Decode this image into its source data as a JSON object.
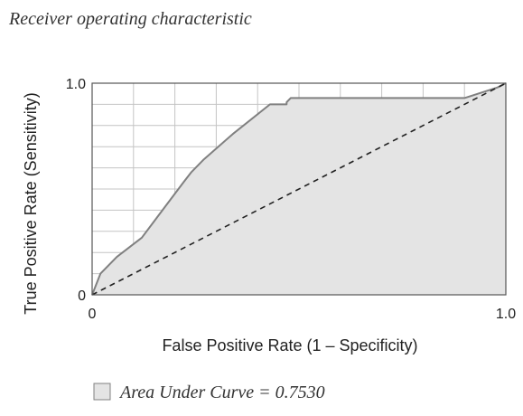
{
  "chart_data": {
    "type": "area",
    "title": "Receiver operating characteristic",
    "xlabel": "False Positive Rate (1 – Specificity)",
    "ylabel": "True Positive Rate (Sensitivity)",
    "xlim": [
      0,
      1.0
    ],
    "ylim": [
      0,
      1.0
    ],
    "x_tick_labels": [
      "0",
      "1.0"
    ],
    "y_tick_labels": [
      "0",
      "1.0"
    ],
    "grid": true,
    "legend_position": "bottom-left",
    "series": [
      {
        "name": "Area Under Curve = 0.7530",
        "kind": "roc-curve",
        "x": [
          0.0,
          0.02,
          0.06,
          0.12,
          0.17,
          0.22,
          0.24,
          0.27,
          0.34,
          0.43,
          0.47,
          0.47,
          0.48,
          0.7,
          0.9,
          0.98,
          1.0
        ],
        "y": [
          0.0,
          0.1,
          0.18,
          0.27,
          0.4,
          0.53,
          0.58,
          0.64,
          0.76,
          0.9,
          0.9,
          0.91,
          0.93,
          0.93,
          0.93,
          0.98,
          1.0
        ]
      },
      {
        "kind": "reference-diagonal",
        "x": [
          0.0,
          1.0
        ],
        "y": [
          0.0,
          1.0
        ]
      }
    ],
    "colors": {
      "fill": "#e4e4e4",
      "curve": "#808080",
      "diagonal": "#222222",
      "grid": "#c4c4c4",
      "frame": "#555555",
      "text": "#222222"
    }
  }
}
